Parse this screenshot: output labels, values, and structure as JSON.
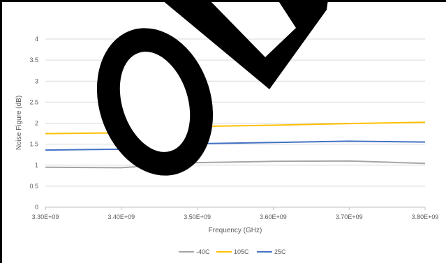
{
  "chart_data": {
    "type": "line",
    "title": "",
    "xlabel": "Frequency (GHz)",
    "ylabel": "Noise Figure (dB)",
    "x": [
      3300000000,
      3400000000,
      3500000000,
      3600000000,
      3700000000,
      3800000000
    ],
    "x_tick_labels": [
      "3.30E+09",
      "3.40E+09",
      "3.50E+09",
      "3.60E+09",
      "3.70E+09",
      "3.80E+09"
    ],
    "y_ticks": [
      "0",
      "0.5",
      "1",
      "1.5",
      "2",
      "2.5",
      "3",
      "3.5",
      "4"
    ],
    "xlim": [
      3300000000,
      3800000000
    ],
    "ylim": [
      0,
      4
    ],
    "grid": "horizontal",
    "legend_position": "bottom",
    "series": [
      {
        "name": "-40C",
        "color": "#a5a5a5",
        "values": [
          0.95,
          0.94,
          1.06,
          1.09,
          1.1,
          1.04
        ]
      },
      {
        "name": "105C",
        "color": "#ffc000",
        "values": [
          1.75,
          1.77,
          1.92,
          1.95,
          1.99,
          2.02
        ]
      },
      {
        "name": "25C",
        "color": "#4472c4",
        "values": [
          1.36,
          1.38,
          1.51,
          1.54,
          1.57,
          1.55
        ]
      }
    ]
  },
  "overlay": {
    "description_colors": {
      "shape": "#000000",
      "frame": "#000000"
    }
  }
}
